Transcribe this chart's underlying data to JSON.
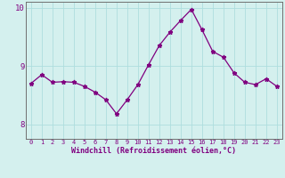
{
  "hours": [
    0,
    1,
    2,
    3,
    4,
    5,
    6,
    7,
    8,
    9,
    10,
    11,
    12,
    13,
    14,
    15,
    16,
    17,
    18,
    19,
    20,
    21,
    22,
    23
  ],
  "values": [
    8.7,
    8.85,
    8.72,
    8.73,
    8.72,
    8.65,
    8.55,
    8.42,
    8.18,
    8.42,
    8.68,
    9.02,
    9.35,
    9.58,
    9.78,
    9.97,
    9.62,
    9.25,
    9.15,
    8.88,
    8.72,
    8.68,
    8.78,
    8.65
  ],
  "line_color": "#800080",
  "marker": "*",
  "marker_size": 3.5,
  "bg_color": "#d4f0ee",
  "grid_color": "#aedede",
  "xlabel": "Windchill (Refroidissement éolien,°C)",
  "ylim": [
    7.75,
    10.1
  ],
  "yticks": [
    8,
    9,
    10
  ],
  "xticks": [
    0,
    1,
    2,
    3,
    4,
    5,
    6,
    7,
    8,
    9,
    10,
    11,
    12,
    13,
    14,
    15,
    16,
    17,
    18,
    19,
    20,
    21,
    22,
    23
  ],
  "tick_color": "#800080",
  "spine_color": "#707070",
  "xlabel_fontsize": 6.0,
  "xtick_fontsize": 5.0,
  "ytick_fontsize": 6.5
}
